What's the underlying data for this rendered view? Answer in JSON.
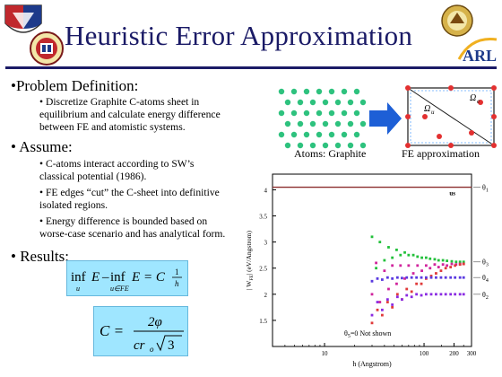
{
  "slide": {
    "title": "Heuristic Error Approximation",
    "sections": [
      {
        "heading": "•Problem Definition:",
        "bullets": [
          "• Discretize Graphite C-atoms sheet in",
          "equilibrium and calculate energy difference",
          "between FE and atomistic systems."
        ]
      },
      {
        "heading": "• Assume:",
        "bullets": [
          "• C-atoms interact according to SW’s",
          "classical potential (1986).",
          "• FE edges “cut” the C-sheet into definitive",
          "isolated regions.",
          "• Energy difference is bounded based on",
          "worse-case scenario and has analytical form."
        ]
      },
      {
        "heading": "• Results:",
        "bullets": []
      }
    ],
    "formula1": {
      "inf1": "inf",
      "sub1": "u",
      "E1": "E",
      "minus": "–",
      "inf2": "inf",
      "sub2": "u∈FE",
      "E2": "E",
      "eq": "= C",
      "num": "1",
      "den": "h"
    },
    "formula2": {
      "lhs": "C =",
      "num": "2φ",
      "den": "cr",
      "den_sub": "o",
      "sqrt": "3"
    },
    "diagram": {
      "atoms_label": "Atoms: Graphite",
      "fe_label": "FE approximation",
      "omega_left": "Ω",
      "omega_left_sub": "u",
      "omega_right": "Ω",
      "omega_right_sub": "e",
      "colors": {
        "atom": "#2ec27e",
        "arrow": "#1d5fd6",
        "fe_node": "#e33030",
        "fe_border": "#1a1a1a"
      }
    }
  },
  "chart_data": {
    "type": "scatter",
    "xlabel": "h (Angstrom)",
    "ylabel": "| W",
    "ylabel_sub": "FE",
    "ylabel_rest": "| (eV/Angstrom)",
    "x_scale": "log",
    "xlim": [
      3,
      300
    ],
    "ylim": [
      1,
      4.3
    ],
    "x_ticks": [
      "10",
      "100",
      "200",
      "300"
    ],
    "y_ticks": [
      "1.5",
      "2",
      "2.5",
      "3",
      "3.5",
      "4"
    ],
    "annotation": "θ",
    "annotation_sub": "5",
    "annotation_rest": "=0   Not shown",
    "us_label": "us",
    "theta_labels": [
      {
        "sym": "θ",
        "sub": "1",
        "y": 4.05
      },
      {
        "sym": "θ",
        "sub": "3",
        "y": 2.62
      },
      {
        "sym": "θ",
        "sub": "4",
        "y": 2.32
      },
      {
        "sym": "θ",
        "sub": "2",
        "y": 2.0
      }
    ],
    "reference_line": {
      "y": 4.05,
      "color": "#8b2e2e"
    },
    "series": [
      {
        "color": "#22c03a",
        "x": [
          30,
          33,
          36,
          40,
          44,
          48,
          53,
          58,
          64,
          70,
          78,
          86,
          95,
          105,
          115,
          128,
          140,
          155,
          170,
          190,
          210,
          230,
          250
        ],
        "y": [
          3.1,
          2.5,
          3.0,
          2.65,
          2.9,
          2.7,
          2.85,
          2.75,
          2.8,
          2.75,
          2.75,
          2.72,
          2.7,
          2.7,
          2.68,
          2.67,
          2.65,
          2.65,
          2.64,
          2.63,
          2.62,
          2.62,
          2.62
        ]
      },
      {
        "color": "#d0249c",
        "x": [
          30,
          33,
          36,
          40,
          44,
          48,
          53,
          58,
          64,
          70,
          78,
          86,
          95,
          105,
          115,
          128,
          140,
          155,
          170,
          190,
          210,
          230,
          250
        ],
        "y": [
          2.0,
          2.6,
          1.85,
          2.45,
          2.1,
          2.55,
          2.2,
          2.55,
          2.3,
          2.55,
          2.4,
          2.55,
          2.45,
          2.55,
          2.5,
          2.57,
          2.52,
          2.57,
          2.55,
          2.58,
          2.57,
          2.58,
          2.58
        ]
      },
      {
        "color": "#e03a3a",
        "x": [
          30,
          34,
          38,
          43,
          48,
          54,
          60,
          67,
          75,
          84,
          94,
          105,
          118,
          132,
          148,
          165,
          185,
          205,
          230,
          250
        ],
        "y": [
          1.45,
          1.7,
          1.6,
          1.85,
          1.75,
          2.0,
          1.9,
          2.1,
          2.05,
          2.2,
          2.2,
          2.3,
          2.35,
          2.4,
          2.45,
          2.5,
          2.52,
          2.55,
          2.57,
          2.58
        ]
      },
      {
        "color": "#5a3ae0",
        "x": [
          30,
          34,
          38,
          43,
          48,
          54,
          60,
          67,
          75,
          84,
          94,
          105,
          118,
          132,
          148,
          165,
          185,
          205,
          230,
          250
        ],
        "y": [
          2.25,
          2.3,
          2.28,
          2.32,
          2.3,
          2.32,
          2.31,
          2.32,
          2.32,
          2.32,
          2.32,
          2.32,
          2.32,
          2.32,
          2.32,
          2.32,
          2.32,
          2.32,
          2.32,
          2.32
        ]
      },
      {
        "color": "#8a2be2",
        "x": [
          30,
          34,
          38,
          43,
          48,
          54,
          60,
          67,
          75,
          84,
          94,
          105,
          118,
          132,
          148,
          165,
          185,
          205,
          230,
          250
        ],
        "y": [
          1.6,
          1.85,
          1.7,
          1.9,
          1.8,
          1.95,
          1.9,
          1.98,
          1.95,
          2.0,
          1.98,
          2.0,
          2.0,
          2.0,
          2.0,
          2.0,
          2.0,
          2.0,
          2.0,
          2.0
        ]
      }
    ]
  }
}
